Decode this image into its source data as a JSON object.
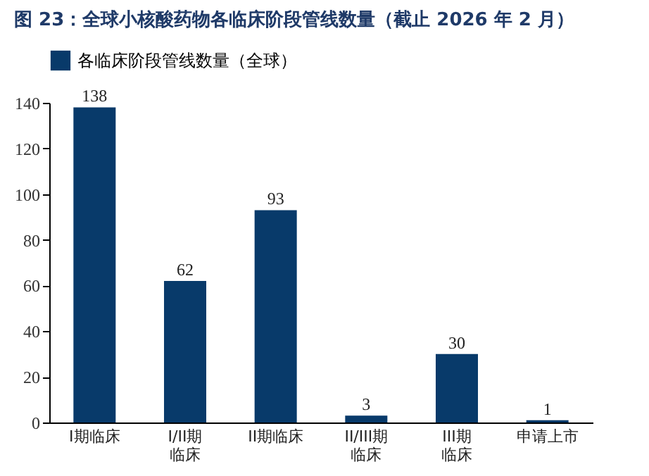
{
  "chart_data": {
    "type": "bar",
    "title": "图 23：全球小核酸药物各临床阶段管线数量（截止 2026 年 2 月）",
    "categories": [
      "I期临床",
      "I/II期临床",
      "II期临床",
      "II/III期临床",
      "III期临床",
      "申请上市"
    ],
    "series": [
      {
        "name": "各临床阶段管线数量（全球）",
        "color": "#083a6a",
        "values": [
          138,
          62,
          93,
          3,
          30,
          1
        ]
      }
    ],
    "ylim": [
      0,
      140
    ],
    "yticks": [
      0,
      20,
      40,
      60,
      80,
      100,
      120,
      140
    ],
    "data_labels": true,
    "grid": false,
    "legend": "top left"
  }
}
